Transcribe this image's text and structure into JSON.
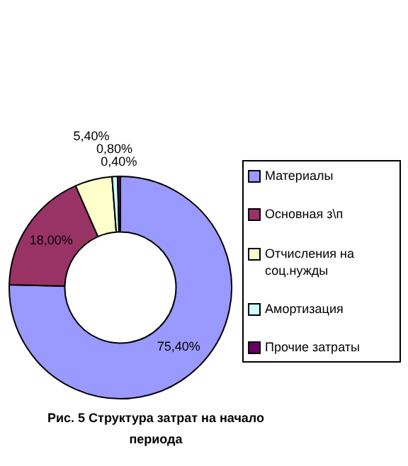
{
  "chart_data": {
    "type": "donut",
    "title": "Рис. 5 Структура затрат на начало периода",
    "categories": [
      "Материалы",
      "Основная з\\п",
      "Отчисления на соц.нужды",
      "Амортизация",
      "Прочие затраты"
    ],
    "values": [
      75.4,
      18.0,
      5.4,
      0.8,
      0.4
    ],
    "value_labels": [
      "75,40%",
      "18,00%",
      "5,40%",
      "0,80%",
      "0,40%"
    ],
    "colors": [
      "#9999ff",
      "#993366",
      "#ffffcc",
      "#ccffff",
      "#660066"
    ],
    "legend": "right"
  }
}
